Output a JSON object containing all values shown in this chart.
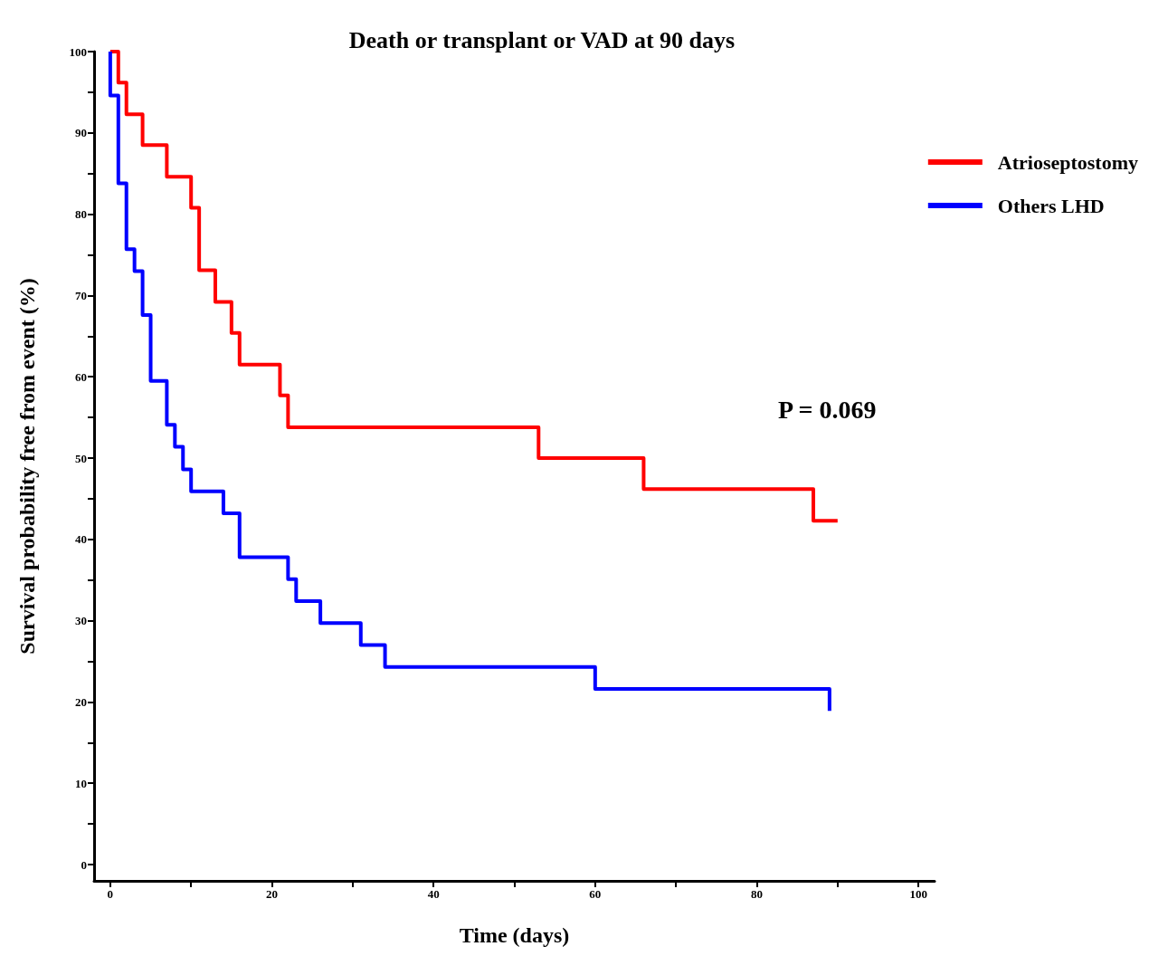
{
  "chart_data": {
    "type": "step",
    "title": "Death or transplant or VAD at 90 days",
    "xlabel": "Time (days)",
    "ylabel": "Survival probability free from event (%)",
    "series": [
      {
        "name": "Atrioseptostomy",
        "color": "#ff0000",
        "x": [
          0,
          1,
          2,
          4,
          7,
          10,
          11,
          13,
          15,
          16,
          21,
          22,
          53,
          66,
          87,
          90
        ],
        "values": [
          100,
          96.2,
          92.3,
          88.5,
          84.6,
          80.8,
          73.1,
          69.2,
          65.4,
          61.5,
          57.7,
          53.8,
          50,
          46.2,
          42.3,
          42.3
        ]
      },
      {
        "name": "Others LHD",
        "color": "#0000ff",
        "x": [
          0,
          0,
          1,
          2,
          3,
          4,
          5,
          7,
          8,
          9,
          10,
          14,
          16,
          22,
          23,
          26,
          31,
          34,
          60,
          89
        ],
        "values": [
          100,
          94.6,
          83.8,
          75.7,
          73,
          67.6,
          59.5,
          54.1,
          51.4,
          48.6,
          45.9,
          43.2,
          37.8,
          35.1,
          32.4,
          29.7,
          27,
          24.3,
          21.6,
          18.9
        ]
      }
    ],
    "xlim": [
      -2,
      102
    ],
    "ylim": [
      -2,
      100
    ],
    "xticks": [
      0,
      {
        "value": 10,
        "label": null
      },
      20,
      {
        "value": 30,
        "label": null
      },
      40,
      {
        "value": 50,
        "label": null
      },
      60,
      {
        "value": 70,
        "label": null
      },
      80,
      {
        "value": 90,
        "label": null
      },
      100
    ],
    "yticks": [
      0,
      {
        "value": 5,
        "label": null
      },
      10,
      {
        "value": 15,
        "label": null
      },
      20,
      {
        "value": 25,
        "label": null
      },
      30,
      {
        "value": 35,
        "label": null
      },
      40,
      {
        "value": 45,
        "label": null
      },
      50,
      {
        "value": 55,
        "label": null
      },
      60,
      {
        "value": 65,
        "label": null
      },
      70,
      {
        "value": 75,
        "label": null
      },
      80,
      {
        "value": 85,
        "label": null
      },
      90,
      {
        "value": 95,
        "label": null
      },
      100
    ],
    "grid": false,
    "legend": "top right",
    "marker": "none",
    "line_style": "solid",
    "annotations": [
      "P = 0.069"
    ]
  }
}
